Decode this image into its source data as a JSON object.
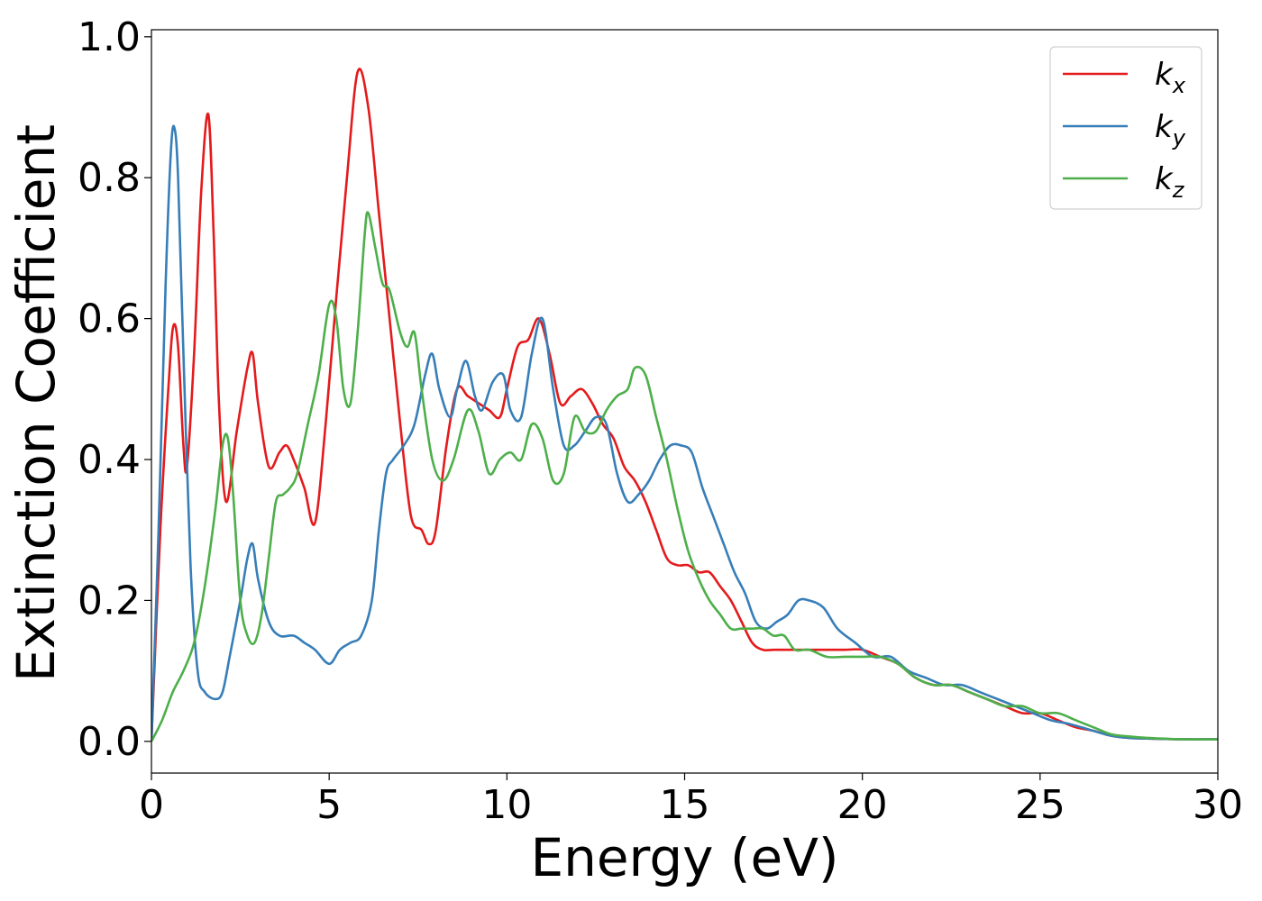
{
  "chart_data": {
    "type": "line",
    "title": "",
    "xlabel": "Energy (eV)",
    "ylabel": "Extinction Coefficient",
    "xlim": [
      0,
      30
    ],
    "ylim": [
      -0.045,
      1.01
    ],
    "xticks": [
      0,
      5,
      10,
      15,
      20,
      25,
      30
    ],
    "xtick_labels": [
      "0",
      "5",
      "10",
      "15",
      "20",
      "25",
      "30"
    ],
    "yticks": [
      0.0,
      0.2,
      0.4,
      0.6,
      0.8,
      1.0
    ],
    "ytick_labels": [
      "0.0",
      "0.2",
      "0.4",
      "0.6",
      "0.8",
      "1.0"
    ],
    "grid": false,
    "legend_position": "top-right",
    "series": [
      {
        "name": "kx",
        "label_base": "k",
        "label_sub": "x",
        "color": "#e41a1c",
        "x": [
          0,
          0.25,
          0.5,
          0.62,
          0.75,
          0.9,
          1.0,
          1.2,
          1.4,
          1.6,
          1.75,
          1.9,
          2.1,
          2.4,
          2.7,
          2.85,
          3.0,
          3.3,
          3.6,
          3.8,
          4.0,
          4.3,
          4.6,
          4.9,
          5.2,
          5.5,
          5.8,
          6.1,
          6.4,
          6.7,
          7.0,
          7.3,
          7.6,
          7.8,
          8.0,
          8.3,
          8.6,
          8.9,
          9.2,
          9.5,
          9.8,
          10.0,
          10.3,
          10.6,
          10.9,
          11.2,
          11.5,
          11.8,
          12.1,
          12.4,
          12.7,
          13.0,
          13.3,
          13.6,
          13.9,
          14.2,
          14.5,
          14.8,
          15.1,
          15.4,
          15.7,
          16.0,
          16.3,
          16.6,
          16.9,
          17.2,
          17.5,
          17.8,
          18.1,
          18.5,
          19.0,
          19.5,
          20.0,
          20.5,
          21.0,
          21.5,
          22.0,
          22.5,
          23.0,
          23.5,
          24.0,
          24.5,
          25.0,
          25.5,
          26.0,
          26.5,
          27.0,
          27.5,
          28.0,
          29.0,
          30.0
        ],
        "values": [
          0.0,
          0.3,
          0.52,
          0.59,
          0.56,
          0.42,
          0.39,
          0.55,
          0.78,
          0.89,
          0.72,
          0.48,
          0.34,
          0.44,
          0.53,
          0.55,
          0.48,
          0.39,
          0.41,
          0.42,
          0.4,
          0.36,
          0.31,
          0.45,
          0.63,
          0.8,
          0.95,
          0.9,
          0.75,
          0.6,
          0.45,
          0.32,
          0.3,
          0.28,
          0.3,
          0.42,
          0.5,
          0.49,
          0.48,
          0.47,
          0.46,
          0.5,
          0.56,
          0.57,
          0.6,
          0.55,
          0.48,
          0.49,
          0.5,
          0.48,
          0.45,
          0.43,
          0.39,
          0.37,
          0.34,
          0.3,
          0.26,
          0.25,
          0.25,
          0.24,
          0.24,
          0.22,
          0.2,
          0.17,
          0.14,
          0.13,
          0.13,
          0.13,
          0.13,
          0.13,
          0.13,
          0.13,
          0.13,
          0.12,
          0.11,
          0.09,
          0.08,
          0.08,
          0.07,
          0.06,
          0.05,
          0.04,
          0.04,
          0.03,
          0.02,
          0.015,
          0.008,
          0.005,
          0.004,
          0.003,
          0.003
        ]
      },
      {
        "name": "ky",
        "label_base": "k",
        "label_sub": "y",
        "color": "#377eb8",
        "x": [
          0,
          0.2,
          0.4,
          0.55,
          0.65,
          0.75,
          0.9,
          1.1,
          1.3,
          1.5,
          1.8,
          2.0,
          2.2,
          2.5,
          2.7,
          2.85,
          3.0,
          3.3,
          3.6,
          4.0,
          4.3,
          4.6,
          5.0,
          5.3,
          5.6,
          5.9,
          6.2,
          6.4,
          6.6,
          6.8,
          7.1,
          7.4,
          7.7,
          7.9,
          8.1,
          8.4,
          8.6,
          8.85,
          9.1,
          9.3,
          9.6,
          9.9,
          10.1,
          10.4,
          10.7,
          11.0,
          11.3,
          11.6,
          11.9,
          12.2,
          12.5,
          12.8,
          13.1,
          13.4,
          13.7,
          14.0,
          14.3,
          14.6,
          14.9,
          15.2,
          15.5,
          15.8,
          16.1,
          16.4,
          16.7,
          17.0,
          17.3,
          17.6,
          17.9,
          18.2,
          18.5,
          18.9,
          19.3,
          19.8,
          20.3,
          20.8,
          21.3,
          21.8,
          22.3,
          22.8,
          23.3,
          23.8,
          24.3,
          24.8,
          25.3,
          25.8,
          26.5,
          27.0,
          27.5,
          28.0,
          29.0,
          30.0
        ],
        "values": [
          0.0,
          0.3,
          0.65,
          0.84,
          0.87,
          0.8,
          0.55,
          0.25,
          0.1,
          0.07,
          0.06,
          0.07,
          0.12,
          0.2,
          0.26,
          0.28,
          0.23,
          0.17,
          0.15,
          0.15,
          0.14,
          0.13,
          0.11,
          0.13,
          0.14,
          0.15,
          0.2,
          0.3,
          0.38,
          0.4,
          0.42,
          0.45,
          0.52,
          0.55,
          0.5,
          0.46,
          0.5,
          0.54,
          0.49,
          0.47,
          0.51,
          0.52,
          0.47,
          0.46,
          0.55,
          0.6,
          0.5,
          0.42,
          0.42,
          0.44,
          0.46,
          0.45,
          0.38,
          0.34,
          0.35,
          0.37,
          0.4,
          0.42,
          0.42,
          0.41,
          0.36,
          0.32,
          0.28,
          0.24,
          0.21,
          0.17,
          0.16,
          0.17,
          0.18,
          0.2,
          0.2,
          0.19,
          0.16,
          0.14,
          0.12,
          0.12,
          0.1,
          0.09,
          0.08,
          0.08,
          0.07,
          0.06,
          0.05,
          0.04,
          0.03,
          0.025,
          0.015,
          0.008,
          0.005,
          0.004,
          0.003,
          0.003
        ]
      },
      {
        "name": "kz",
        "label_base": "k",
        "label_sub": "z",
        "color": "#4daf4a",
        "x": [
          0,
          0.3,
          0.6,
          0.9,
          1.2,
          1.5,
          1.8,
          2.0,
          2.15,
          2.3,
          2.5,
          2.7,
          2.9,
          3.1,
          3.3,
          3.5,
          3.7,
          3.9,
          4.1,
          4.4,
          4.7,
          5.0,
          5.2,
          5.4,
          5.6,
          5.8,
          6.0,
          6.1,
          6.3,
          6.5,
          6.7,
          7.0,
          7.2,
          7.4,
          7.6,
          7.9,
          8.2,
          8.5,
          8.9,
          9.2,
          9.5,
          9.8,
          10.1,
          10.4,
          10.7,
          11.0,
          11.3,
          11.6,
          11.9,
          12.2,
          12.5,
          12.8,
          13.1,
          13.4,
          13.6,
          13.9,
          14.2,
          14.5,
          14.8,
          15.1,
          15.4,
          15.7,
          16.0,
          16.3,
          16.6,
          16.9,
          17.2,
          17.5,
          17.8,
          18.1,
          18.5,
          19.0,
          19.5,
          20.0,
          20.5,
          21.0,
          21.5,
          22.0,
          22.5,
          23.0,
          23.5,
          24.0,
          24.5,
          25.0,
          25.5,
          26.0,
          26.5,
          27.0,
          27.5,
          28.0,
          29.0,
          30.0
        ],
        "values": [
          0.0,
          0.03,
          0.07,
          0.1,
          0.14,
          0.22,
          0.33,
          0.42,
          0.43,
          0.35,
          0.2,
          0.15,
          0.14,
          0.18,
          0.26,
          0.34,
          0.35,
          0.36,
          0.38,
          0.45,
          0.52,
          0.62,
          0.6,
          0.5,
          0.48,
          0.58,
          0.72,
          0.75,
          0.7,
          0.65,
          0.64,
          0.58,
          0.56,
          0.58,
          0.5,
          0.4,
          0.37,
          0.4,
          0.47,
          0.44,
          0.38,
          0.4,
          0.41,
          0.4,
          0.45,
          0.43,
          0.37,
          0.38,
          0.46,
          0.44,
          0.44,
          0.47,
          0.49,
          0.5,
          0.53,
          0.52,
          0.46,
          0.4,
          0.33,
          0.27,
          0.23,
          0.2,
          0.18,
          0.16,
          0.16,
          0.16,
          0.16,
          0.15,
          0.15,
          0.13,
          0.13,
          0.12,
          0.12,
          0.12,
          0.12,
          0.11,
          0.09,
          0.08,
          0.08,
          0.07,
          0.06,
          0.05,
          0.05,
          0.04,
          0.04,
          0.03,
          0.02,
          0.01,
          0.007,
          0.005,
          0.003,
          0.003
        ]
      }
    ]
  }
}
